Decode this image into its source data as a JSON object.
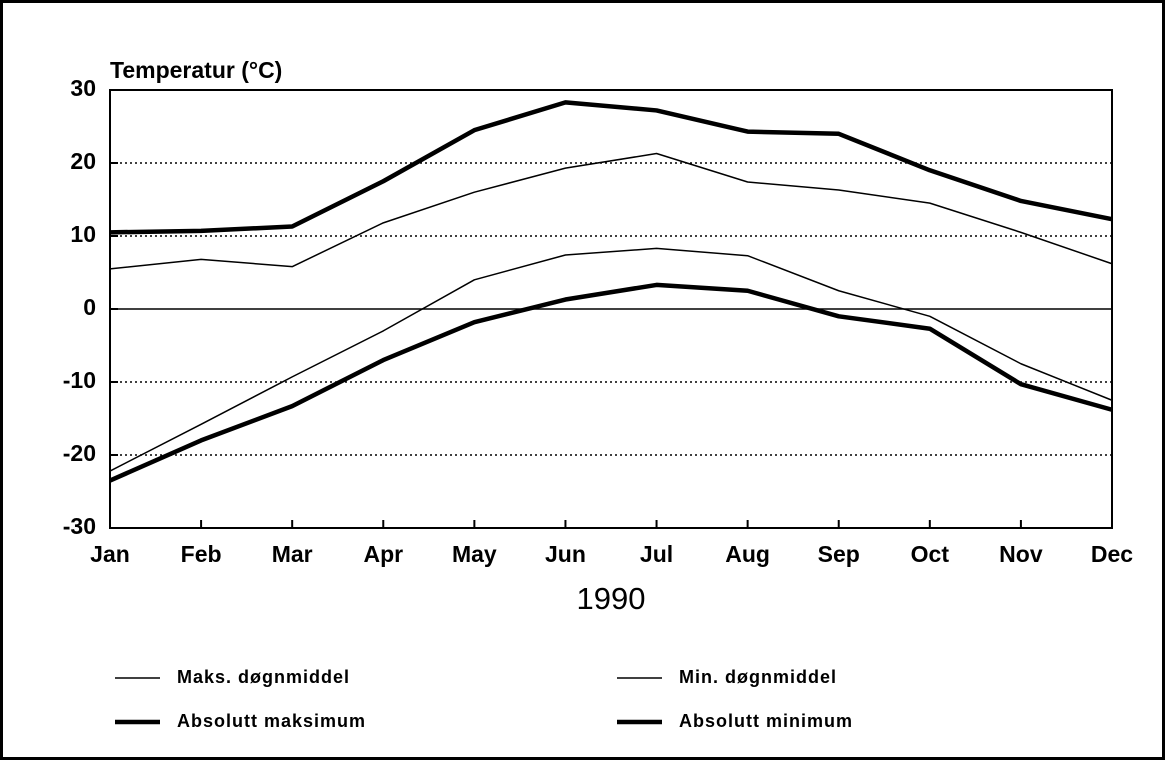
{
  "chart_data": {
    "type": "line",
    "title": "Temperatur (°C)",
    "xlabel": "1990",
    "categories": [
      "Jan",
      "Feb",
      "Mar",
      "Apr",
      "May",
      "Jun",
      "Jul",
      "Aug",
      "Sep",
      "Oct",
      "Nov",
      "Dec"
    ],
    "series": [
      {
        "name": "Maks. døgnmiddel",
        "color": "#000000",
        "line_width": 1.5,
        "values": [
          5.5,
          6.8,
          5.8,
          11.8,
          16,
          19.3,
          21.3,
          17.4,
          16.3,
          14.5,
          10.5,
          6.2
        ]
      },
      {
        "name": "Min. døgnmiddel",
        "color": "#000000",
        "line_width": 1.5,
        "values": [
          -22.2,
          -15.8,
          -9.3,
          -3,
          4,
          7.4,
          8.3,
          7.3,
          2.5,
          -1,
          -7.5,
          -12.5
        ]
      },
      {
        "name": "Absolutt maksimum",
        "color": "#000000",
        "line_width": 4.5,
        "values": [
          10.5,
          10.7,
          11.3,
          17.5,
          24.5,
          28.3,
          27.2,
          24.3,
          24,
          19,
          14.8,
          12.3
        ]
      },
      {
        "name": "Absolutt minimum",
        "color": "#000000",
        "line_width": 4.5,
        "values": [
          -23.5,
          -18,
          -13.3,
          -7,
          -1.8,
          1.3,
          3.3,
          2.5,
          -1,
          -2.7,
          -10.3,
          -13.8
        ]
      }
    ],
    "ylim": [
      -30,
      30
    ],
    "yticks": [
      -30,
      -20,
      -10,
      0,
      10,
      20,
      30
    ],
    "grid": true
  }
}
